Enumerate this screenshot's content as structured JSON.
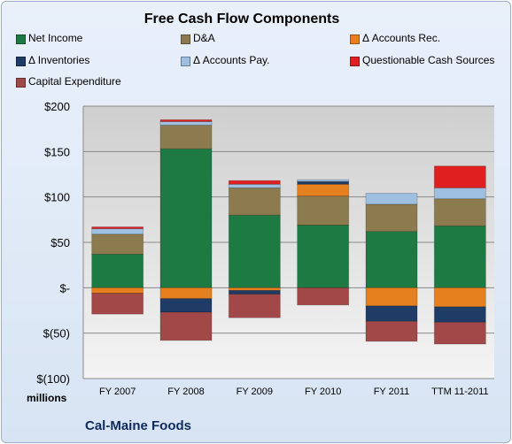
{
  "chart_data": {
    "type": "bar",
    "stacked": true,
    "title": "Free Cash Flow Components",
    "company": "Cal-Maine Foods",
    "unit_label": "millions",
    "categories": [
      "FY 2007",
      "FY 2008",
      "FY 2009",
      "FY 2010",
      "FY 2011",
      "TTM 11-2011"
    ],
    "ylim": [
      -100,
      200
    ],
    "yticks": [
      200,
      150,
      100,
      50,
      0,
      -50,
      -100
    ],
    "ytick_labels": [
      "$200",
      "$150",
      "$100",
      "$50",
      "$-",
      "$(50)",
      "$(100)"
    ],
    "grid": true,
    "legend_position": "top",
    "series": [
      {
        "name": "Net Income",
        "color": "#1e7a43",
        "values": [
          37,
          153,
          80,
          69,
          62,
          68
        ]
      },
      {
        "name": "D&A",
        "color": "#8c7b4f",
        "values": [
          22,
          26,
          30,
          32,
          30,
          30
        ]
      },
      {
        "name": "Δ Accounts Rec.",
        "color": "#e6801e",
        "values": [
          -6,
          -12,
          -3,
          13,
          -20,
          -21
        ]
      },
      {
        "name": "Δ Inventories",
        "color": "#1f3c66",
        "values": [
          0,
          -15,
          -4,
          3,
          -17,
          -17
        ]
      },
      {
        "name": "Δ Accounts Pay.",
        "color": "#9fbfe0",
        "values": [
          6,
          4,
          4,
          2,
          12,
          12
        ]
      },
      {
        "name": "Questionable Cash Sources",
        "color": "#e02020",
        "values": [
          2,
          2,
          4,
          0,
          0,
          24
        ]
      },
      {
        "name": "Capital Expenditure",
        "color": "#a24848",
        "values": [
          -23,
          -31,
          -26,
          -19,
          -22,
          -24
        ]
      }
    ]
  }
}
